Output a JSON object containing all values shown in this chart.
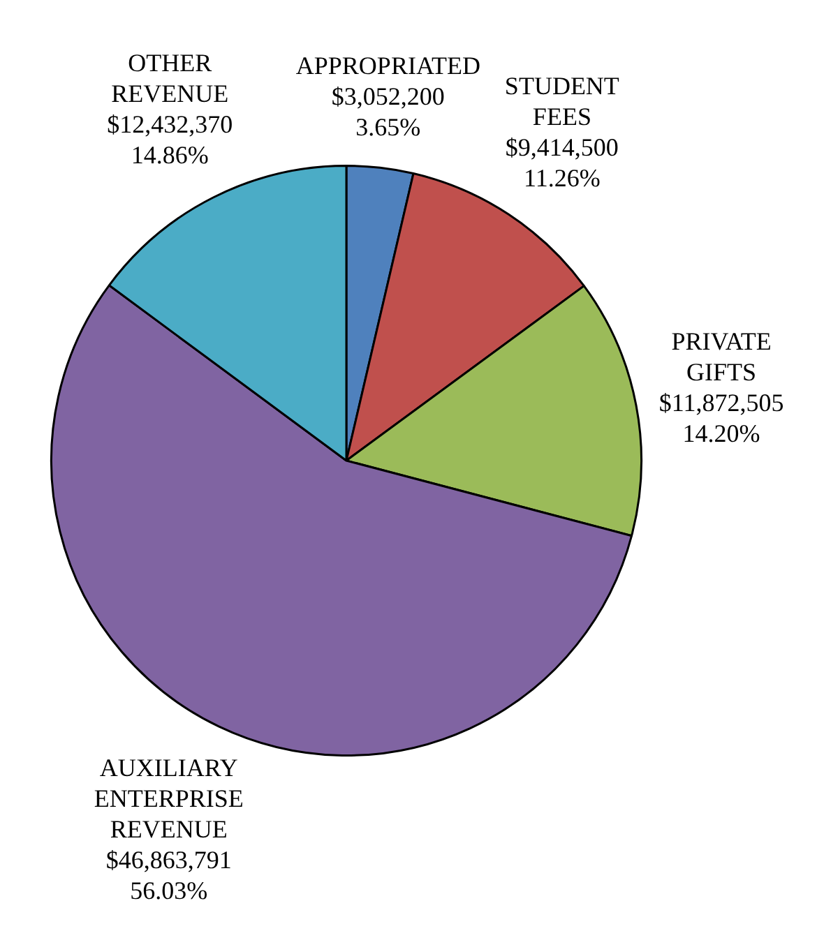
{
  "chart_data": {
    "type": "pie",
    "categories": [
      "APPROPRIATED",
      "STUDENT FEES",
      "PRIVATE GIFTS",
      "AUXILIARY ENTERPRISE REVENUE",
      "OTHER REVENUE"
    ],
    "values": [
      3052200,
      9414500,
      11872505,
      46863791,
      12432370
    ],
    "colors": [
      "#4f81bd",
      "#c0504d",
      "#9bbb59",
      "#8064a2",
      "#4bacc6"
    ],
    "value_labels": [
      "$3,052,200 3.65%",
      "$9,414,500 11.26%",
      "$11,872,505 14.20%",
      "$46,863,791 56.03%",
      "$12,432,370 14.86%"
    ],
    "legend": false
  }
}
